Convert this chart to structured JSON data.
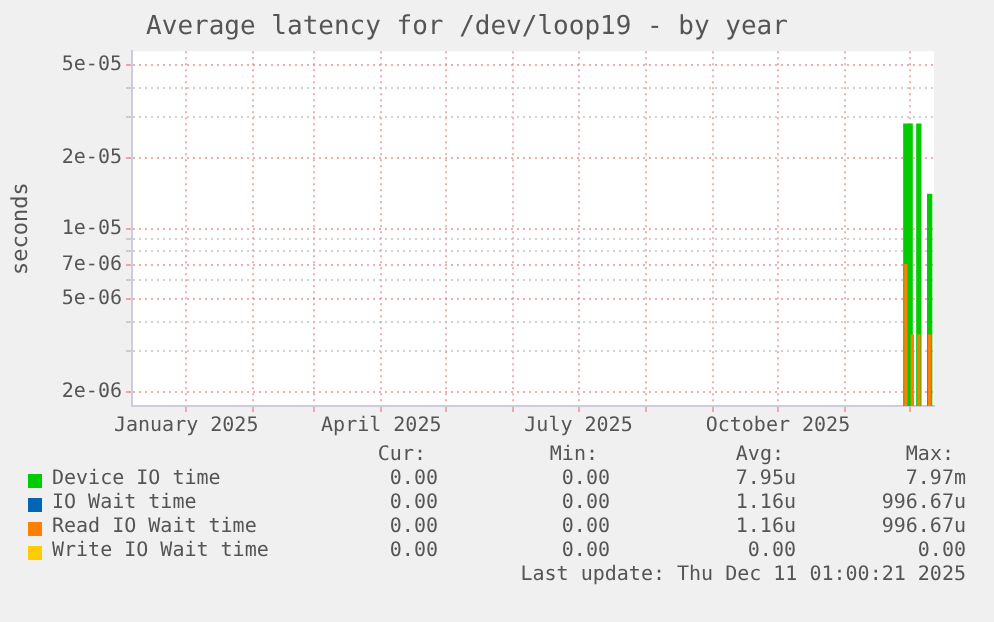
{
  "chart_data": {
    "type": "bar",
    "title": "Average latency for /dev/loop19 - by year",
    "ylabel": "seconds",
    "log": "y",
    "grid": true,
    "legend": "bottom",
    "xlim": [
      "2024-12-07",
      "2025-12-12"
    ],
    "xticks": [
      {
        "value": "2025-01-01",
        "label": "January 2025"
      },
      {
        "value": "2025-02-01",
        "label": null
      },
      {
        "value": "2025-03-01",
        "label": null
      },
      {
        "value": "2025-04-01",
        "label": "April 2025"
      },
      {
        "value": "2025-05-01",
        "label": null
      },
      {
        "value": "2025-06-01",
        "label": null
      },
      {
        "value": "2025-07-01",
        "label": "July 2025"
      },
      {
        "value": "2025-08-01",
        "label": null
      },
      {
        "value": "2025-09-01",
        "label": null
      },
      {
        "value": "2025-10-01",
        "label": "October 2025"
      },
      {
        "value": "2025-11-01",
        "label": null
      },
      {
        "value": "2025-12-01",
        "label": null
      }
    ],
    "ylim": [
      1.74e-06,
      5.74e-05
    ],
    "yticks": [
      {
        "value": 2e-06,
        "label": "2e-06"
      },
      {
        "value": 3e-06,
        "label": null
      },
      {
        "value": 4e-06,
        "label": null
      },
      {
        "value": 5e-06,
        "label": "5e-06"
      },
      {
        "value": 6e-06,
        "label": null
      },
      {
        "value": 7e-06,
        "label": "7e-06"
      },
      {
        "value": 8e-06,
        "label": null
      },
      {
        "value": 9e-06,
        "label": null
      },
      {
        "value": 1e-05,
        "label": "1e-05"
      },
      {
        "value": 2e-05,
        "label": "2e-05"
      },
      {
        "value": 3e-05,
        "label": null
      },
      {
        "value": 4e-05,
        "label": null
      },
      {
        "value": 5e-05,
        "label": "5e-05"
      }
    ],
    "series": [
      {
        "name": "Device IO time",
        "color": "#00cc00",
        "x": [
          "2025-11-29",
          "2025-12-01",
          "2025-12-05",
          "2025-12-10"
        ],
        "values": [
          2.8e-05,
          2.8e-05,
          2.8e-05,
          1.4e-05
        ]
      },
      {
        "name": "IO Wait time",
        "color": "#0066b3"
      },
      {
        "name": "Read IO Wait time",
        "color": "#ff8000",
        "x": [
          "2025-11-29",
          "2025-12-02",
          "2025-12-05",
          "2025-12-10"
        ],
        "values": [
          7e-06,
          3.5e-06,
          3.5e-06,
          3.5e-06
        ]
      },
      {
        "name": "Write IO Wait time",
        "color": "#ffcc00"
      }
    ],
    "annotations": [
      "Cur:",
      "Min:",
      "Avg:",
      "Max:",
      "0.00",
      "0.00",
      "7.95u",
      "7.97m",
      "0.00",
      "0.00",
      "1.16u",
      "996.67u",
      "0.00",
      "0.00",
      "1.16u",
      "996.67u",
      "0.00",
      "0.00",
      "0.00",
      "0.00",
      "Last update: Thu Dec 11 01:00:21 2025"
    ]
  }
}
